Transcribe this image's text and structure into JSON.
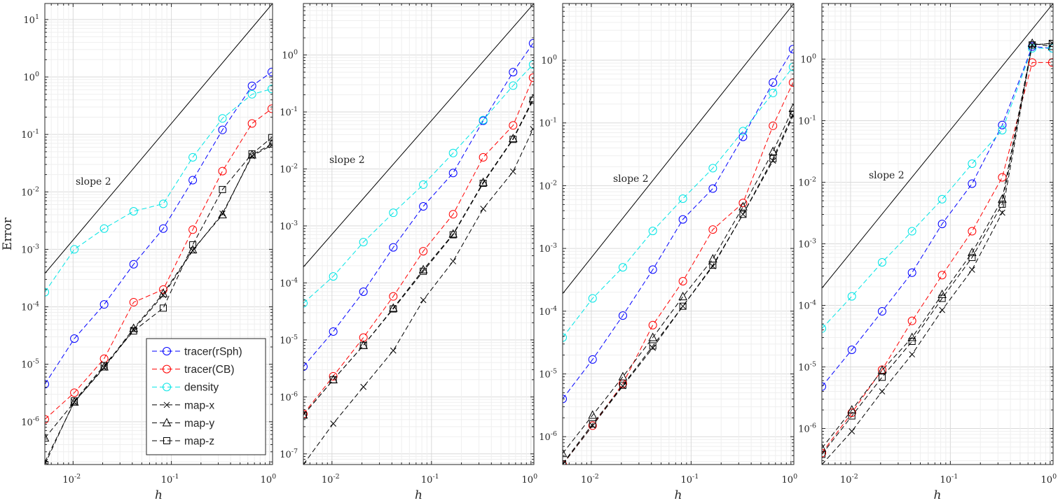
{
  "chart_data": [
    {
      "type": "line",
      "panel": 1,
      "xlabel": "h",
      "ylabel": "Error",
      "xscale": "log",
      "yscale": "log",
      "xlim": [
        0.00516,
        1.07
      ],
      "ylim": [
        1.8e-07,
        19
      ],
      "x": [
        0.00516,
        0.0103,
        0.0207,
        0.0413,
        0.0827,
        0.165,
        0.331,
        0.661,
        1.05
      ],
      "yticks": [
        1e-06,
        1e-05,
        0.0001,
        0.001,
        0.01,
        0.1,
        1,
        10
      ],
      "grid": true,
      "annotation": "slope 2",
      "reference": {
        "label": "slope 2",
        "x": [
          0.00516,
          1.07
        ],
        "y": [
          0.00038,
          19
        ]
      },
      "legend_placement": "bottom-right",
      "series": [
        {
          "name": "tracer(rSph)",
          "color": "#0000ff",
          "marker": "circle",
          "values": [
            4.5e-06,
            2.8e-05,
            0.00011,
            0.00055,
            0.0023,
            0.016,
            0.12,
            0.7,
            1.22
          ]
        },
        {
          "name": "tracer(CB)",
          "color": "#ff0000",
          "marker": "circle",
          "values": [
            1.1e-06,
            3.2e-06,
            1.25e-05,
            0.00012,
            0.0002,
            0.0022,
            0.023,
            0.155,
            0.28
          ]
        },
        {
          "name": "density",
          "color": "#00e5e5",
          "marker": "circle",
          "values": [
            0.00018,
            0.001,
            0.0023,
            0.0046,
            0.0062,
            0.04,
            0.19,
            0.5,
            0.62
          ]
        },
        {
          "name": "map-x",
          "color": "#000000",
          "marker": "x",
          "values": [
            2e-07,
            2.2e-06,
            8.7e-06,
            4e-05,
            0.00016,
            0.00095,
            0.0042,
            0.042,
            0.065
          ]
        },
        {
          "name": "map-y",
          "color": "#000000",
          "marker": "triangle",
          "values": [
            5.2e-07,
            2.2e-06,
            9e-06,
            4.2e-05,
            0.00017,
            0.00098,
            0.004,
            0.044,
            0.068
          ]
        },
        {
          "name": "map-z",
          "color": "#000000",
          "marker": "square",
          "values": [
            1.8e-07,
            2.3e-06,
            9.5e-06,
            3.8e-05,
            9.5e-05,
            0.0012,
            0.011,
            0.046,
            0.088
          ]
        }
      ]
    },
    {
      "type": "line",
      "panel": 2,
      "xlabel": "h",
      "xscale": "log",
      "yscale": "log",
      "xlim": [
        0.00516,
        1.07
      ],
      "ylim": [
        6.5e-08,
        8
      ],
      "x": [
        0.00516,
        0.0103,
        0.0207,
        0.0413,
        0.0827,
        0.165,
        0.331,
        0.661,
        1.05
      ],
      "yticks": [
        1e-07,
        1e-06,
        1e-05,
        0.0001,
        0.001,
        0.01,
        0.1,
        1
      ],
      "grid": true,
      "annotation": "slope 2",
      "reference": {
        "label": "slope 2",
        "x": [
          0.00516,
          1.07
        ],
        "y": [
          0.00019,
          8
        ]
      },
      "series": [
        {
          "name": "tracer(rSph)",
          "color": "#0000ff",
          "marker": "circle",
          "values": [
            3.4e-06,
            1.4e-05,
            7e-05,
            0.00042,
            0.0022,
            0.0085,
            0.07,
            0.5,
            1.6
          ]
        },
        {
          "name": "tracer(CB)",
          "color": "#ff0000",
          "marker": "circle",
          "values": [
            5e-07,
            2.3e-06,
            1.1e-05,
            5.8e-05,
            0.00036,
            0.0016,
            0.016,
            0.058,
            0.4
          ]
        },
        {
          "name": "density",
          "color": "#00e5e5",
          "marker": "circle",
          "values": [
            4.4e-05,
            0.00013,
            0.00052,
            0.0017,
            0.0053,
            0.019,
            0.072,
            0.29,
            0.68
          ]
        },
        {
          "name": "map-x",
          "color": "#000000",
          "marker": "x",
          "values": [
            6.5e-08,
            3.4e-07,
            1.5e-06,
            6.5e-06,
            5e-05,
            0.00024,
            0.002,
            0.009,
            0.05
          ]
        },
        {
          "name": "map-y",
          "color": "#000000",
          "marker": "triangle",
          "values": [
            4.8e-07,
            2e-06,
            8e-06,
            3.6e-05,
            0.00017,
            0.00072,
            0.0058,
            0.034,
            0.17
          ]
        },
        {
          "name": "map-z",
          "color": "#000000",
          "marker": "square",
          "values": [
            4.8e-07,
            2e-06,
            8e-06,
            3.5e-05,
            0.00016,
            0.0007,
            0.0056,
            0.033,
            0.16
          ]
        }
      ]
    },
    {
      "type": "line",
      "panel": 3,
      "xlabel": "h",
      "xscale": "log",
      "yscale": "log",
      "xlim": [
        0.00516,
        1.07
      ],
      "ylim": [
        3.6e-07,
        8
      ],
      "x": [
        0.00516,
        0.0103,
        0.0207,
        0.0413,
        0.0827,
        0.165,
        0.331,
        0.661,
        1.05
      ],
      "yticks": [
        1e-06,
        1e-05,
        0.0001,
        0.001,
        0.01,
        0.1,
        1
      ],
      "grid": true,
      "annotation": "slope 2",
      "reference": {
        "label": "slope 2",
        "x": [
          0.00516,
          1.07
        ],
        "y": [
          0.00019,
          8
        ]
      },
      "series": [
        {
          "name": "tracer(rSph)",
          "color": "#0000ff",
          "marker": "circle",
          "values": [
            4e-06,
            1.7e-05,
            8.5e-05,
            0.00046,
            0.0029,
            0.009,
            0.06,
            0.44,
            1.5
          ]
        },
        {
          "name": "tracer(CB)",
          "color": "#ff0000",
          "marker": "circle",
          "values": [
            3.6e-07,
            1.5e-06,
            7e-06,
            6e-05,
            0.0003,
            0.002,
            0.0053,
            0.09,
            0.44
          ]
        },
        {
          "name": "density",
          "color": "#00e5e5",
          "marker": "circle",
          "values": [
            3.8e-05,
            0.00016,
            0.0005,
            0.0019,
            0.0062,
            0.019,
            0.074,
            0.3,
            0.78
          ]
        },
        {
          "name": "map-x",
          "color": "#000000",
          "marker": "x",
          "values": [
            3.6e-07,
            1.5e-06,
            6.4e-06,
            2.6e-05,
            0.00012,
            0.00052,
            0.0035,
            0.025,
            0.13
          ]
        },
        {
          "name": "map-y",
          "color": "#000000",
          "marker": "triangle",
          "values": [
            5.4e-07,
            2.2e-06,
            9e-06,
            3.8e-05,
            0.00017,
            0.00068,
            0.0046,
            0.035,
            0.17
          ]
        },
        {
          "name": "map-z",
          "color": "#000000",
          "marker": "square",
          "values": [
            3.7e-07,
            1.6e-06,
            6.6e-06,
            2.8e-05,
            0.00012,
            0.00054,
            0.0035,
            0.027,
            0.14
          ]
        }
      ]
    },
    {
      "type": "line",
      "panel": 4,
      "xlabel": "h",
      "xscale": "log",
      "yscale": "log",
      "xlim": [
        0.00516,
        1.07
      ],
      "ylim": [
        2.6e-07,
        8
      ],
      "x": [
        0.00516,
        0.0103,
        0.0207,
        0.0413,
        0.0827,
        0.165,
        0.331,
        0.661,
        1.05
      ],
      "yticks": [
        1e-06,
        1e-05,
        0.0001,
        0.001,
        0.01,
        0.1,
        1
      ],
      "grid": true,
      "annotation": "slope 2",
      "reference": {
        "label": "slope 2",
        "x": [
          0.00516,
          1.07
        ],
        "y": [
          0.00019,
          8
        ]
      },
      "series": [
        {
          "name": "tracer(rSph)",
          "color": "#0000ff",
          "marker": "circle",
          "values": [
            4.8e-06,
            1.9e-05,
            8e-05,
            0.00034,
            0.0021,
            0.0095,
            0.085,
            1.6,
            1.5
          ]
        },
        {
          "name": "tracer(CB)",
          "color": "#ff0000",
          "marker": "circle",
          "values": [
            4e-07,
            1.8e-06,
            9e-06,
            5.6e-05,
            0.00031,
            0.0016,
            0.012,
            0.88,
            0.88
          ]
        },
        {
          "name": "density",
          "color": "#00e5e5",
          "marker": "circle",
          "values": [
            4.2e-05,
            0.00014,
            0.0005,
            0.0016,
            0.0053,
            0.02,
            0.07,
            1.5,
            1.5
          ]
        },
        {
          "name": "map-x",
          "color": "#000000",
          "marker": "x",
          "values": [
            2.6e-07,
            9e-07,
            4e-06,
            1.6e-05,
            8.4e-05,
            0.00038,
            0.0032,
            1.7,
            1.8
          ]
        },
        {
          "name": "map-y",
          "color": "#000000",
          "marker": "triangle",
          "values": [
            4.8e-07,
            2e-06,
            8.8e-06,
            3e-05,
            0.00015,
            0.00072,
            0.0053,
            1.8,
            1.6
          ]
        },
        {
          "name": "map-z",
          "color": "#000000",
          "marker": "square",
          "values": [
            3.8e-07,
            1.6e-06,
            6.8e-06,
            2.6e-05,
            0.00013,
            0.0006,
            0.0044,
            1.7,
            1.8
          ]
        }
      ]
    }
  ]
}
